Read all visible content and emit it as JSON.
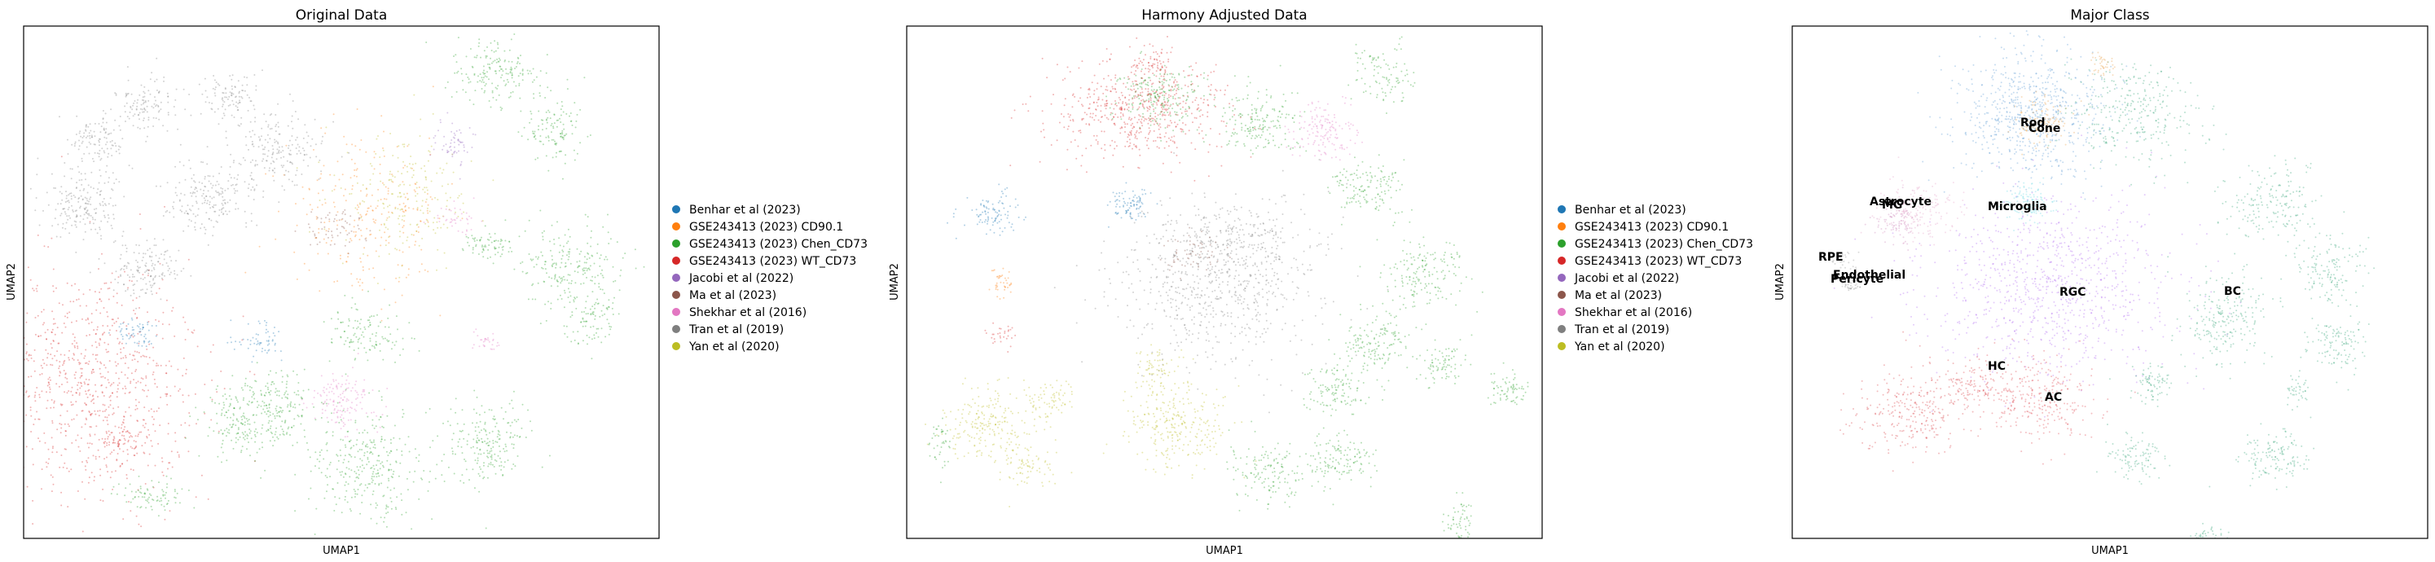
{
  "chart_data": [
    {
      "type": "scatter",
      "title": "Original Data",
      "xlabel": "UMAP1",
      "ylabel": "UMAP2",
      "grid": false,
      "legend_position": "right",
      "series": [
        {
          "name": "Benhar et al (2023)",
          "color": "#1f77b4"
        },
        {
          "name": "GSE243413 (2023) CD90.1",
          "color": "#ff7f0e"
        },
        {
          "name": "GSE243413 (2023) Chen_CD73",
          "color": "#2ca02c"
        },
        {
          "name": "GSE243413 (2023) WT_CD73",
          "color": "#d62728"
        },
        {
          "name": "Jacobi et al (2022)",
          "color": "#9467bd"
        },
        {
          "name": "Ma et al (2023)",
          "color": "#8c564b"
        },
        {
          "name": "Shekhar et al (2016)",
          "color": "#e377c2"
        },
        {
          "name": "Tran et al (2019)",
          "color": "#7f7f7f"
        },
        {
          "name": "Yan et al (2020)",
          "color": "#bcbd22"
        }
      ]
    },
    {
      "type": "scatter",
      "title": "Harmony Adjusted Data",
      "xlabel": "UMAP1",
      "ylabel": "UMAP2",
      "grid": false,
      "legend_position": "right",
      "series": [
        {
          "name": "Benhar et al (2023)",
          "color": "#1f77b4"
        },
        {
          "name": "GSE243413 (2023) CD90.1",
          "color": "#ff7f0e"
        },
        {
          "name": "GSE243413 (2023) Chen_CD73",
          "color": "#2ca02c"
        },
        {
          "name": "GSE243413 (2023) WT_CD73",
          "color": "#d62728"
        },
        {
          "name": "Jacobi et al (2022)",
          "color": "#9467bd"
        },
        {
          "name": "Ma et al (2023)",
          "color": "#8c564b"
        },
        {
          "name": "Shekhar et al (2016)",
          "color": "#e377c2"
        },
        {
          "name": "Tran et al (2019)",
          "color": "#7f7f7f"
        },
        {
          "name": "Yan et al (2020)",
          "color": "#bcbd22"
        }
      ]
    },
    {
      "type": "scatter",
      "title": "Major Class",
      "xlabel": "UMAP1",
      "ylabel": "UMAP2",
      "grid": false,
      "annotations": [
        "Rod",
        "Cone",
        "Astrocyte",
        "MG",
        "Microglia",
        "RPE",
        "Endothelial",
        "Pericyte",
        "RGC",
        "BC",
        "HC",
        "AC"
      ],
      "class_colors": {
        "Rod": "#5b9bd5",
        "Cone": "#e8a04a",
        "Astrocyte": "#e4a2c8",
        "MG": "#cc88bb",
        "Microglia": "#74d9e6",
        "RPE": "#999999",
        "Endothelial": "#aaaaaa",
        "Pericyte": "#888888",
        "RGC": "#b36cf0",
        "BC": "#3aa57a",
        "HC": "#d9454a",
        "AC": "#e04a52"
      }
    }
  ]
}
